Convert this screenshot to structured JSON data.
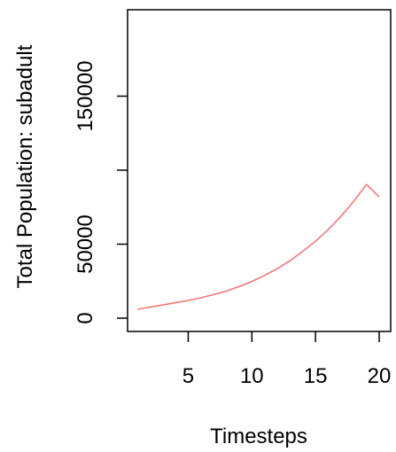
{
  "chart_data": {
    "type": "line",
    "xlabel": "Timesteps",
    "ylabel": "Total Population:  subadult",
    "xlim": [
      1,
      20
    ],
    "ylim": [
      0,
      200000
    ],
    "xticks": [
      5,
      10,
      15,
      20
    ],
    "yticks": [
      0,
      50000,
      100000,
      150000
    ],
    "ytick_labels": [
      "0",
      "50000",
      "",
      "150000"
    ],
    "grid": false,
    "series": [
      {
        "color": "#f07878",
        "x": [
          1,
          2,
          3,
          4,
          5,
          6,
          7,
          8,
          9,
          10,
          11,
          12,
          13,
          14,
          15,
          16,
          17,
          18,
          19,
          20
        ],
        "y": [
          6000,
          7500,
          8900,
          10400,
          12000,
          13800,
          15900,
          18300,
          21300,
          24800,
          28900,
          33500,
          38800,
          45200,
          52000,
          59800,
          68800,
          79000,
          90300,
          82000
        ]
      }
    ]
  }
}
